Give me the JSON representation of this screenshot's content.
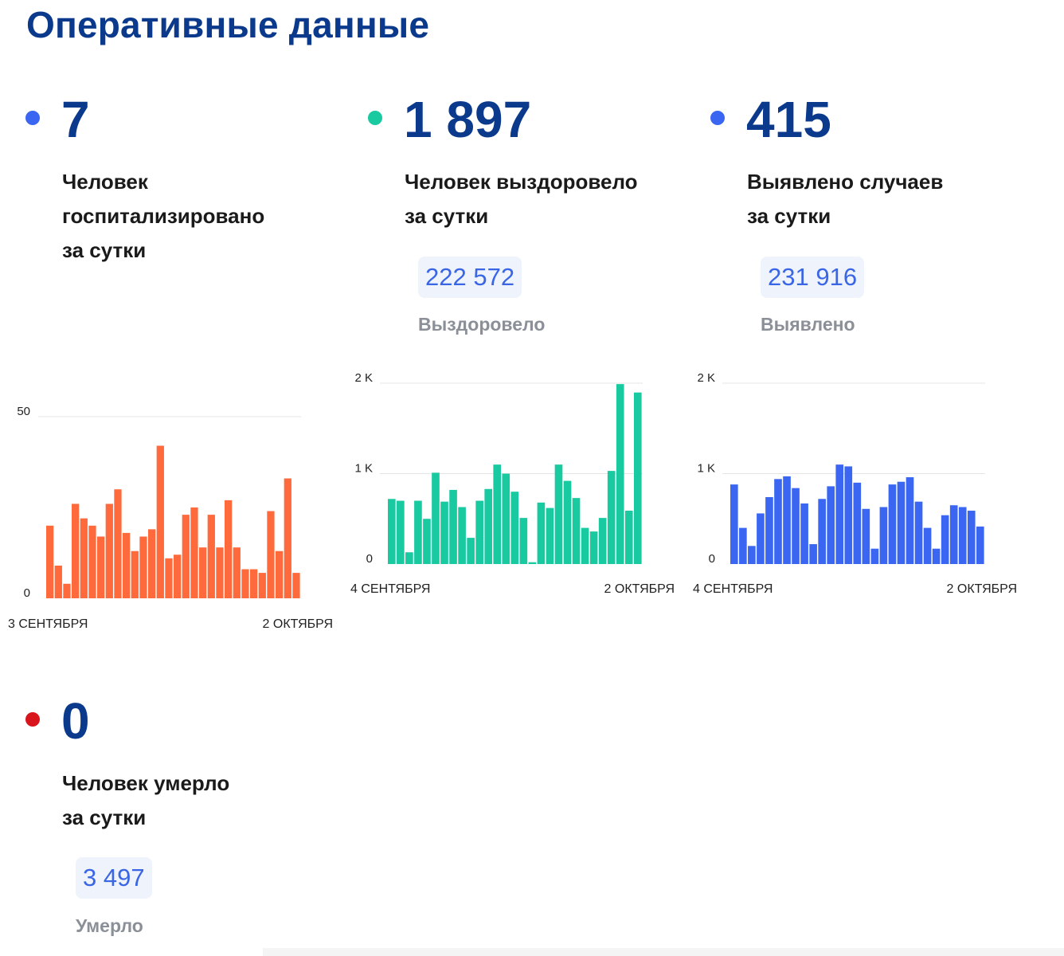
{
  "page_title": "Оперативные данные",
  "colors": {
    "hospital": "#ff6a3d",
    "recovered": "#19c9a0",
    "detected": "#3a66f2",
    "died": "#d8141c",
    "title": "#0b3a8c"
  },
  "stats": {
    "hospital": {
      "value": "7",
      "label_lines": [
        "Человек",
        "госпитализировано",
        "за сутки"
      ]
    },
    "recovered": {
      "value": "1 897",
      "label_lines": [
        "Человек выздоровело",
        "за сутки"
      ],
      "total": "222 572",
      "total_label": "Выздоровело"
    },
    "detected": {
      "value": "415",
      "label_lines": [
        "Выявлено случаев",
        "за сутки"
      ],
      "total": "231 916",
      "total_label": "Выявлено"
    },
    "died": {
      "value": "0",
      "label_lines": [
        "Человек умерло",
        "за сутки"
      ],
      "total": "3 497",
      "total_label": "Умерло"
    }
  },
  "chart_data": [
    {
      "type": "bar",
      "series_key": "hospital",
      "x_start_label": "3 СЕНТЯБРЯ",
      "x_end_label": "2 ОКТЯБРЯ",
      "ylim": [
        0,
        50
      ],
      "y_ticks": [
        {
          "value": 0,
          "label": "0"
        },
        {
          "value": 50,
          "label": "50"
        }
      ],
      "values": [
        20,
        9,
        4,
        26,
        22,
        20,
        17,
        26,
        30,
        18,
        13,
        17,
        19,
        42,
        11,
        12,
        23,
        25,
        14,
        23,
        14,
        27,
        14,
        8,
        8,
        7,
        24,
        13,
        33,
        7
      ]
    },
    {
      "type": "bar",
      "series_key": "recovered",
      "x_start_label": "4 СЕНТЯБРЯ",
      "x_end_label": "2 ОКТЯБРЯ",
      "ylim": [
        0,
        2000
      ],
      "y_ticks": [
        {
          "value": 0,
          "label": "0"
        },
        {
          "value": 1000,
          "label": "1 K"
        },
        {
          "value": 2000,
          "label": "2 K"
        }
      ],
      "values": [
        720,
        700,
        130,
        700,
        500,
        1010,
        690,
        820,
        630,
        290,
        700,
        830,
        1100,
        1000,
        800,
        510,
        20,
        680,
        620,
        1100,
        920,
        730,
        400,
        360,
        510,
        1030,
        1990,
        590,
        1897
      ]
    },
    {
      "type": "bar",
      "series_key": "detected",
      "x_start_label": "4 СЕНТЯБРЯ",
      "x_end_label": "2 ОКТЯБРЯ",
      "ylim": [
        0,
        2000
      ],
      "y_ticks": [
        {
          "value": 0,
          "label": "0"
        },
        {
          "value": 1000,
          "label": "1 K"
        },
        {
          "value": 2000,
          "label": "2 K"
        }
      ],
      "values": [
        880,
        400,
        200,
        560,
        740,
        940,
        970,
        840,
        670,
        220,
        720,
        860,
        1100,
        1080,
        900,
        610,
        170,
        630,
        880,
        910,
        960,
        690,
        400,
        170,
        540,
        650,
        630,
        590,
        415
      ]
    }
  ]
}
